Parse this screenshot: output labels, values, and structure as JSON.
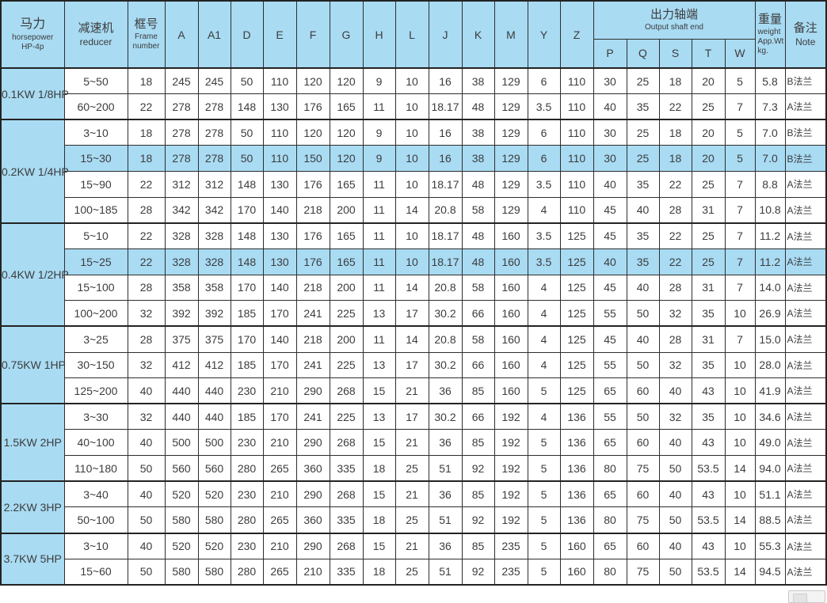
{
  "colors": {
    "header_bg": "#a9dbf3",
    "highlight_bg": "#a9dbf3",
    "grid_border": "#2e2e2e",
    "group_border": "#232323",
    "text": "#3c3c3c",
    "page_bg": "#ffffff"
  },
  "table": {
    "header": {
      "power": {
        "zh": "马力",
        "en_line1": "horsepower",
        "en_line2": "HP-4p"
      },
      "reducer": {
        "zh": "减速机",
        "en": "reducer"
      },
      "frame": {
        "zh": "框号",
        "en_line1": "Frame",
        "en_line2": "number"
      },
      "dims": [
        "A",
        "A1",
        "D",
        "E",
        "F",
        "G",
        "H",
        "L",
        "J",
        "K",
        "M",
        "Y",
        "Z"
      ],
      "output_group": {
        "zh": "出力轴端",
        "en": "Output shaft end"
      },
      "output_cols": [
        "P",
        "Q",
        "S",
        "T",
        "W"
      ],
      "weight": {
        "zh": "重量",
        "en_line1": "weight",
        "en_line2": "App.Wt",
        "en_line3": "kg."
      },
      "note": {
        "zh": "备注",
        "en": "Note"
      }
    },
    "groups": [
      {
        "power": "0.1KW 1/8HP",
        "rows": [
          {
            "reducer": "5~50",
            "frame": "18",
            "dims": [
              "245",
              "245",
              "50",
              "110",
              "120",
              "120",
              "9",
              "10",
              "16",
              "38",
              "129",
              "6",
              "110"
            ],
            "output": [
              "30",
              "25",
              "18",
              "20",
              "5"
            ],
            "weight": "5.8",
            "note": "B法兰",
            "highlight": false
          },
          {
            "reducer": "60~200",
            "frame": "22",
            "dims": [
              "278",
              "278",
              "148",
              "130",
              "176",
              "165",
              "11",
              "10",
              "18.17",
              "48",
              "129",
              "3.5",
              "110"
            ],
            "output": [
              "40",
              "35",
              "22",
              "25",
              "7"
            ],
            "weight": "7.3",
            "note": "A法兰",
            "highlight": false
          }
        ]
      },
      {
        "power": "0.2KW 1/4HP",
        "rows": [
          {
            "reducer": "3~10",
            "frame": "18",
            "dims": [
              "278",
              "278",
              "50",
              "110",
              "120",
              "120",
              "9",
              "10",
              "16",
              "38",
              "129",
              "6",
              "110"
            ],
            "output": [
              "30",
              "25",
              "18",
              "20",
              "5"
            ],
            "weight": "7.0",
            "note": "B法兰",
            "highlight": false
          },
          {
            "reducer": "15~30",
            "frame": "18",
            "dims": [
              "278",
              "278",
              "50",
              "110",
              "150",
              "120",
              "9",
              "10",
              "16",
              "38",
              "129",
              "6",
              "110"
            ],
            "output": [
              "30",
              "25",
              "18",
              "20",
              "5"
            ],
            "weight": "7.0",
            "note": "B法兰",
            "highlight": true
          },
          {
            "reducer": "15~90",
            "frame": "22",
            "dims": [
              "312",
              "312",
              "148",
              "130",
              "176",
              "165",
              "11",
              "10",
              "18.17",
              "48",
              "129",
              "3.5",
              "110"
            ],
            "output": [
              "40",
              "35",
              "22",
              "25",
              "7"
            ],
            "weight": "8.8",
            "note": "A法兰",
            "highlight": false
          },
          {
            "reducer": "100~185",
            "frame": "28",
            "dims": [
              "342",
              "342",
              "170",
              "140",
              "218",
              "200",
              "11",
              "14",
              "20.8",
              "58",
              "129",
              "4",
              "110"
            ],
            "output": [
              "45",
              "40",
              "28",
              "31",
              "7"
            ],
            "weight": "10.8",
            "note": "A法兰",
            "highlight": false
          }
        ]
      },
      {
        "power": "0.4KW 1/2HP",
        "rows": [
          {
            "reducer": "5~10",
            "frame": "22",
            "dims": [
              "328",
              "328",
              "148",
              "130",
              "176",
              "165",
              "11",
              "10",
              "18.17",
              "48",
              "160",
              "3.5",
              "125"
            ],
            "output": [
              "45",
              "35",
              "22",
              "25",
              "7"
            ],
            "weight": "11.2",
            "note": "A法兰",
            "highlight": false
          },
          {
            "reducer": "15~25",
            "frame": "22",
            "dims": [
              "328",
              "328",
              "148",
              "130",
              "176",
              "165",
              "11",
              "10",
              "18.17",
              "48",
              "160",
              "3.5",
              "125"
            ],
            "output": [
              "40",
              "35",
              "22",
              "25",
              "7"
            ],
            "weight": "11.2",
            "note": "A法兰",
            "highlight": true
          },
          {
            "reducer": "15~100",
            "frame": "28",
            "dims": [
              "358",
              "358",
              "170",
              "140",
              "218",
              "200",
              "11",
              "14",
              "20.8",
              "58",
              "160",
              "4",
              "125"
            ],
            "output": [
              "45",
              "40",
              "28",
              "31",
              "7"
            ],
            "weight": "14.0",
            "note": "A法兰",
            "highlight": false
          },
          {
            "reducer": "100~200",
            "frame": "32",
            "dims": [
              "392",
              "392",
              "185",
              "170",
              "241",
              "225",
              "13",
              "17",
              "30.2",
              "66",
              "160",
              "4",
              "125"
            ],
            "output": [
              "55",
              "50",
              "32",
              "35",
              "10"
            ],
            "weight": "26.9",
            "note": "A法兰",
            "highlight": false
          }
        ]
      },
      {
        "power": "0.75KW 1HP",
        "rows": [
          {
            "reducer": "3~25",
            "frame": "28",
            "dims": [
              "375",
              "375",
              "170",
              "140",
              "218",
              "200",
              "11",
              "14",
              "20.8",
              "58",
              "160",
              "4",
              "125"
            ],
            "output": [
              "45",
              "40",
              "28",
              "31",
              "7"
            ],
            "weight": "15.0",
            "note": "A法兰",
            "highlight": false
          },
          {
            "reducer": "30~150",
            "frame": "32",
            "dims": [
              "412",
              "412",
              "185",
              "170",
              "241",
              "225",
              "13",
              "17",
              "30.2",
              "66",
              "160",
              "4",
              "125"
            ],
            "output": [
              "55",
              "50",
              "32",
              "35",
              "10"
            ],
            "weight": "28.0",
            "note": "A法兰",
            "highlight": false
          },
          {
            "reducer": "125~200",
            "frame": "40",
            "dims": [
              "440",
              "440",
              "230",
              "210",
              "290",
              "268",
              "15",
              "21",
              "36",
              "85",
              "160",
              "5",
              "125"
            ],
            "output": [
              "65",
              "60",
              "40",
              "43",
              "10"
            ],
            "weight": "41.9",
            "note": "A法兰",
            "highlight": false
          }
        ]
      },
      {
        "power": "1.5KW 2HP",
        "rows": [
          {
            "reducer": "3~30",
            "frame": "32",
            "dims": [
              "440",
              "440",
              "185",
              "170",
              "241",
              "225",
              "13",
              "17",
              "30.2",
              "66",
              "192",
              "4",
              "136"
            ],
            "output": [
              "55",
              "50",
              "32",
              "35",
              "10"
            ],
            "weight": "34.6",
            "note": "A法兰",
            "highlight": false
          },
          {
            "reducer": "40~100",
            "frame": "40",
            "dims": [
              "500",
              "500",
              "230",
              "210",
              "290",
              "268",
              "15",
              "21",
              "36",
              "85",
              "192",
              "5",
              "136"
            ],
            "output": [
              "65",
              "60",
              "40",
              "43",
              "10"
            ],
            "weight": "49.0",
            "note": "A法兰",
            "highlight": false
          },
          {
            "reducer": "110~180",
            "frame": "50",
            "dims": [
              "560",
              "560",
              "280",
              "265",
              "360",
              "335",
              "18",
              "25",
              "51",
              "92",
              "192",
              "5",
              "136"
            ],
            "output": [
              "80",
              "75",
              "50",
              "53.5",
              "14"
            ],
            "weight": "94.0",
            "note": "A法兰",
            "highlight": false
          }
        ]
      },
      {
        "power": "2.2KW 3HP",
        "rows": [
          {
            "reducer": "3~40",
            "frame": "40",
            "dims": [
              "520",
              "520",
              "230",
              "210",
              "290",
              "268",
              "15",
              "21",
              "36",
              "85",
              "192",
              "5",
              "136"
            ],
            "output": [
              "65",
              "60",
              "40",
              "43",
              "10"
            ],
            "weight": "51.1",
            "note": "A法兰",
            "highlight": false
          },
          {
            "reducer": "50~100",
            "frame": "50",
            "dims": [
              "580",
              "580",
              "280",
              "265",
              "360",
              "335",
              "18",
              "25",
              "51",
              "92",
              "192",
              "5",
              "136"
            ],
            "output": [
              "80",
              "75",
              "50",
              "53.5",
              "14"
            ],
            "weight": "88.5",
            "note": "A法兰",
            "highlight": false
          }
        ]
      },
      {
        "power": "3.7KW 5HP",
        "rows": [
          {
            "reducer": "3~10",
            "frame": "40",
            "dims": [
              "520",
              "520",
              "230",
              "210",
              "290",
              "268",
              "15",
              "21",
              "36",
              "85",
              "235",
              "5",
              "160"
            ],
            "output": [
              "65",
              "60",
              "40",
              "43",
              "10"
            ],
            "weight": "55.3",
            "note": "A法兰",
            "highlight": false
          },
          {
            "reducer": "15~60",
            "frame": "50",
            "dims": [
              "580",
              "580",
              "280",
              "265",
              "210",
              "335",
              "18",
              "25",
              "51",
              "92",
              "235",
              "5",
              "160"
            ],
            "output": [
              "80",
              "75",
              "50",
              "53.5",
              "14"
            ],
            "weight": "94.5",
            "note": "A法兰",
            "highlight": false
          }
        ]
      }
    ]
  }
}
